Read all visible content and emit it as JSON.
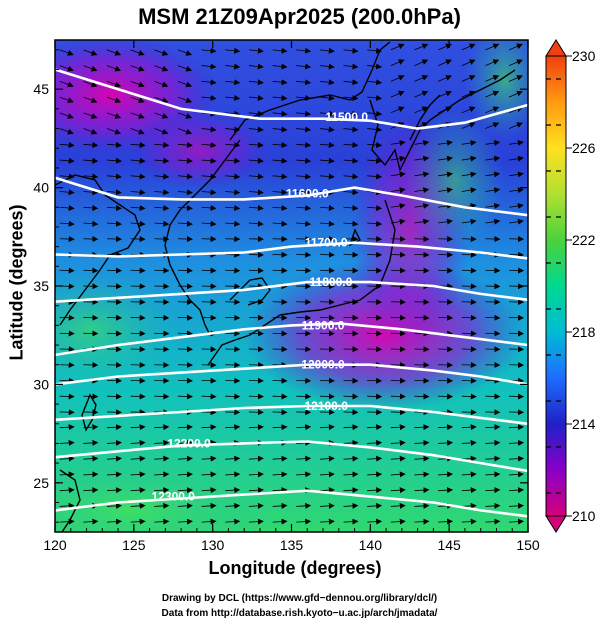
{
  "title": "MSM 21Z09Apr2025 (200.0hPa)",
  "axes": {
    "xlabel": "Longitude (degrees)",
    "ylabel": "Latitude  (degrees)",
    "xticks": [
      "120",
      "125",
      "130",
      "135",
      "140",
      "145",
      "150"
    ],
    "yticks": [
      "25",
      "30",
      "35",
      "40",
      "45"
    ]
  },
  "colorbar": {
    "labels": [
      "230",
      "226",
      "222",
      "218",
      "214",
      "210"
    ],
    "colors": [
      "#d4007a",
      "#8a00c8",
      "#2020c8",
      "#1e6cff",
      "#00bcd4",
      "#00d890",
      "#4cd23c",
      "#b0e030",
      "#ffe020",
      "#ff9a10",
      "#f04010"
    ]
  },
  "credits": {
    "line1": "Drawing by DCL (https://www.gfd−dennou.org/library/dcl/)",
    "line2": "Data from http://database.rish.kyoto−u.ac.jp/arch/jmadata/"
  },
  "contours": [
    {
      "label": "11500.0"
    },
    {
      "label": "11600.0"
    },
    {
      "label": "11700.0"
    },
    {
      "label": "11800.0"
    },
    {
      "label": "11900.0"
    },
    {
      "label": "12000.0"
    },
    {
      "label": "12100.0"
    },
    {
      "label": "12200.0"
    },
    {
      "label": "12300.0"
    }
  ],
  "map_data": {
    "lon_range": [
      120,
      150
    ],
    "lat_range": [
      22.5,
      47.5
    ]
  }
}
